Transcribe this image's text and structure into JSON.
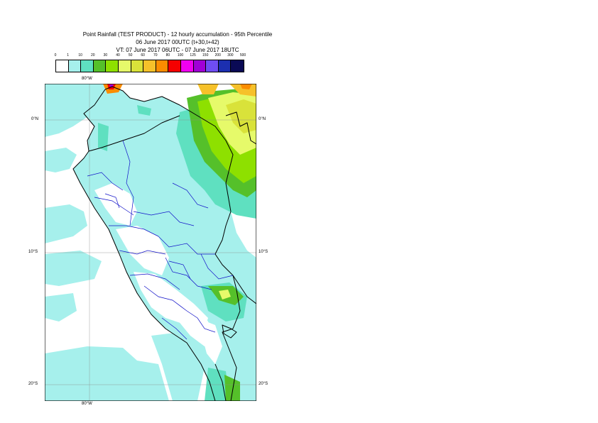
{
  "title": {
    "line1": "Point Rainfall (TEST PRODUCT) - 12 hourly accumulation - 95th Percentile",
    "line2": "06 June 2017 00UTC (t+30,t+42)",
    "line3": "VT: 07 June 2017 06UTC - 07 June 2017 18UTC"
  },
  "legend": {
    "thresholds": [
      "0",
      "1",
      "10",
      "20",
      "30",
      "40",
      "50",
      "60",
      "70",
      "80",
      "100",
      "125",
      "150",
      "200",
      "300",
      "500"
    ],
    "colors": [
      "#ffffff",
      "#a6f0ec",
      "#5fe0c0",
      "#55c02a",
      "#8ee000",
      "#e6fa6a",
      "#d9e23a",
      "#f6c12a",
      "#fb8c00",
      "#f50000",
      "#f000f0",
      "#a000d6",
      "#6f4df2",
      "#1c2fb0",
      "#0a0a55"
    ]
  },
  "map": {
    "lon_labels_top": [
      "80°W"
    ],
    "lon_labels_bottom": [
      "80°W"
    ],
    "lat_labels_left": [
      "0°N",
      "10°S",
      "20°S"
    ],
    "lat_labels_right": [
      "0°N",
      "10°S",
      "20°S"
    ],
    "colors": {
      "sea": "#a6f0ec",
      "land_rain": "#a6f0ec",
      "dry": "#ffffff",
      "coast": "#000000",
      "regions": "#1010c8",
      "grid": "#8c8c8c"
    }
  }
}
